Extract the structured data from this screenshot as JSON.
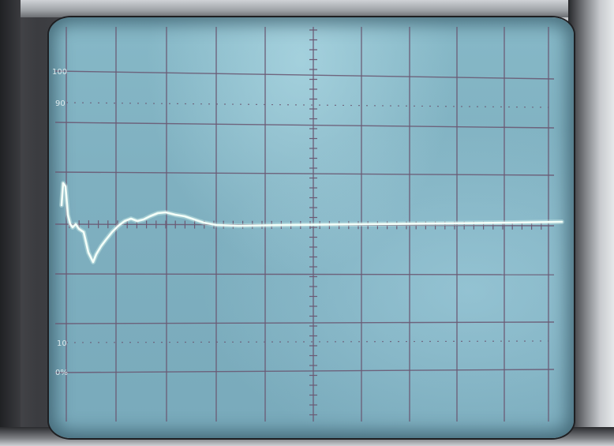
{
  "image": {
    "subject": "oscilloscope-crt-screen",
    "graticule_labels": {
      "top_100": "100",
      "mark_90": "90",
      "mark_10": "10",
      "bottom_0": "0%"
    },
    "colors": {
      "screen": "#80b2c2",
      "grid_line": "#6b5a74",
      "trace": "#f2fff8",
      "bezel_dark": "#2a2b2e",
      "bezel_light": "#d9dbde"
    }
  }
}
